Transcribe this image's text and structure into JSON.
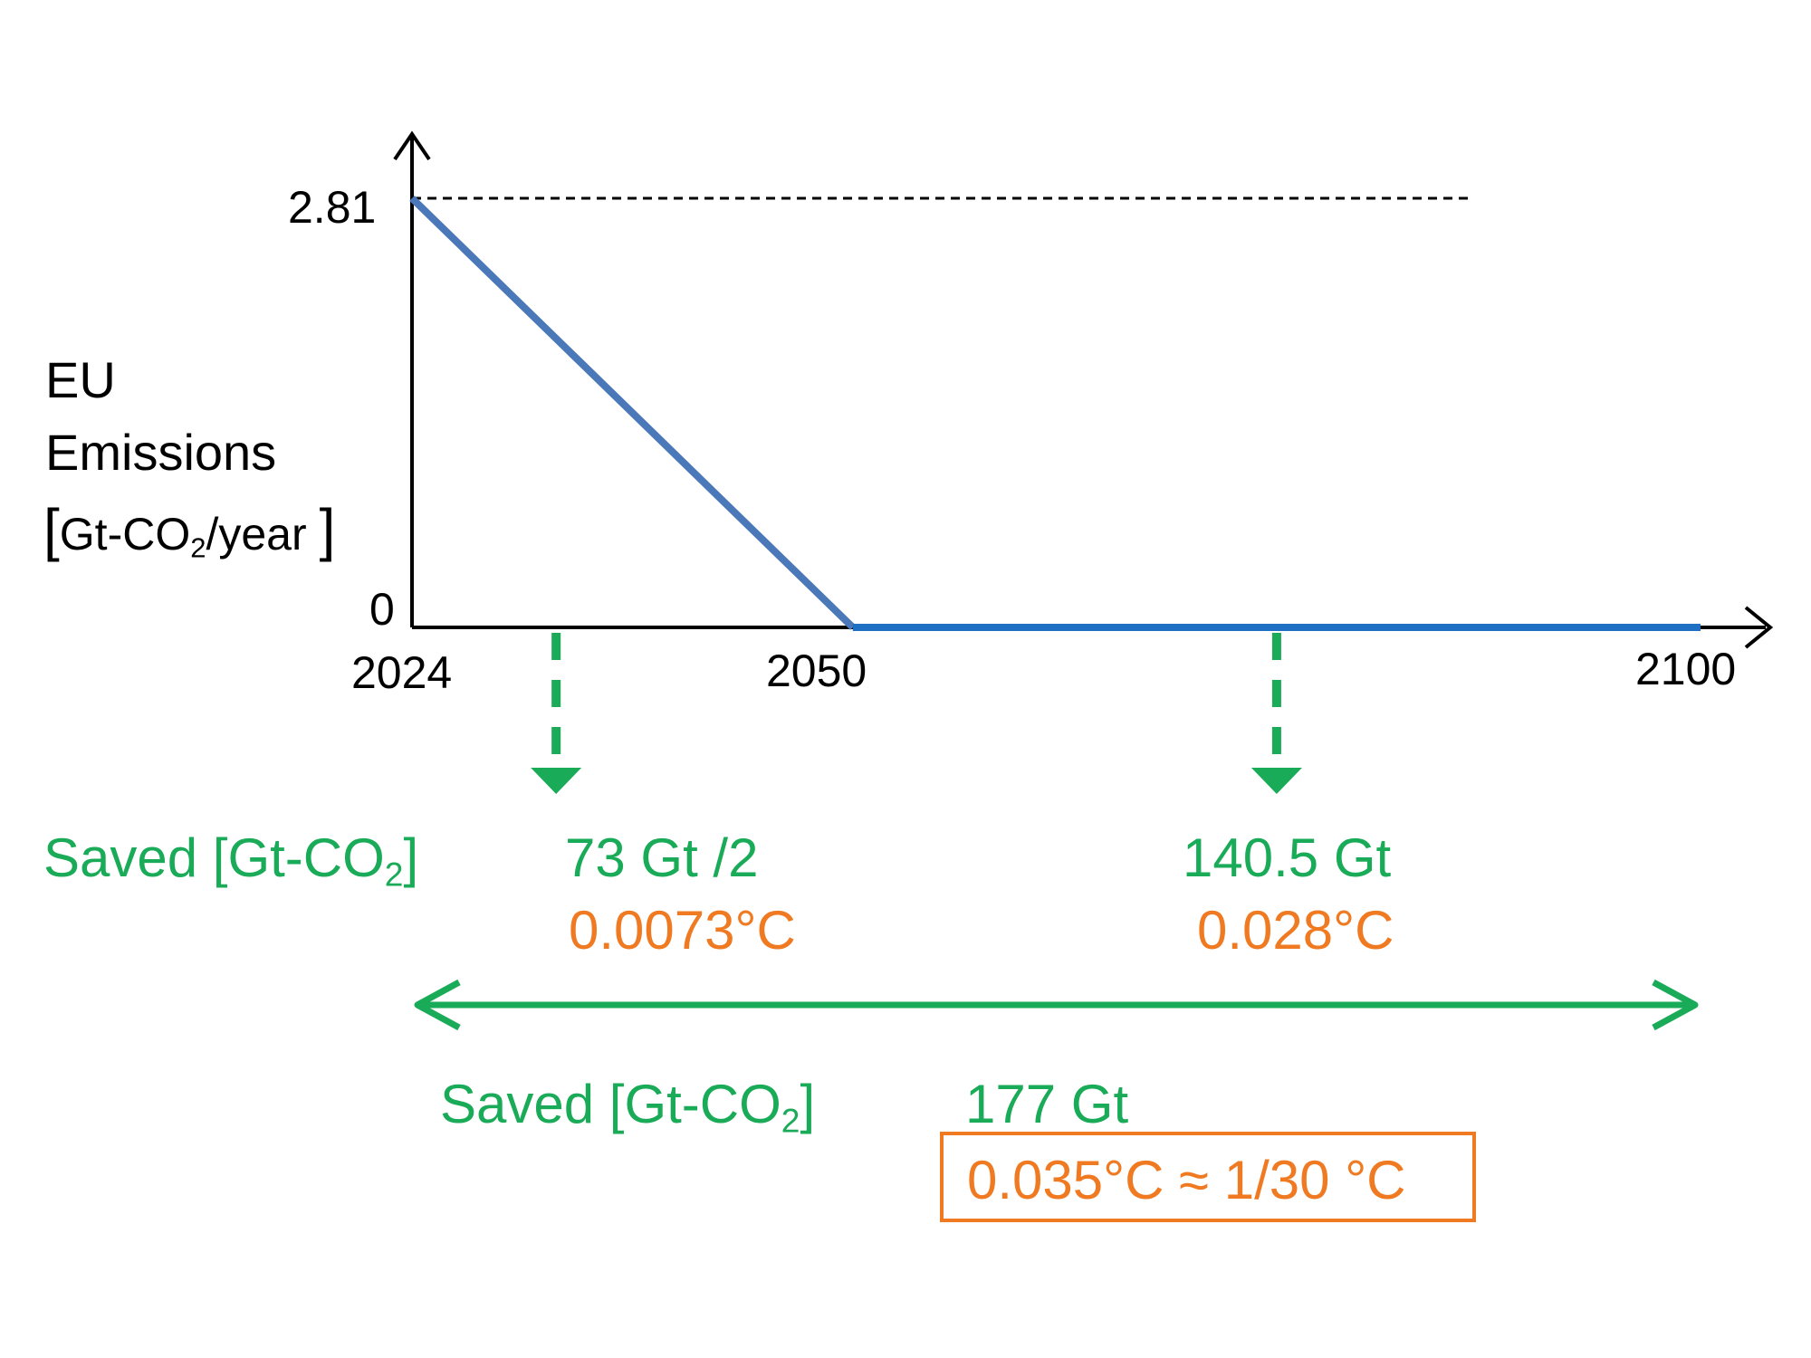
{
  "colors": {
    "axis": "#000000",
    "emissions_line": "#4A78B8",
    "zero_line": "#1F6FC4",
    "saved": "#1AAB58",
    "temperature": "#F07A22"
  },
  "chart_data": {
    "type": "line",
    "title": "",
    "ylabel_lines": [
      "EU",
      "Emissions"
    ],
    "ylabel_unit": {
      "open": "[",
      "pre": "Gt-CO",
      "sub": "2",
      "post": "/year",
      "close": "]"
    },
    "x_ticks": [
      "2024",
      "2050",
      "2100"
    ],
    "y_ticks": [
      "0",
      "2.81"
    ],
    "xlim": [
      2024,
      2100
    ],
    "ylim": [
      0,
      2.81
    ],
    "reference_level": 2.81,
    "series": [
      {
        "x": [
          2024,
          2050,
          2100
        ],
        "y": [
          2.81,
          0,
          0
        ]
      }
    ],
    "annotations": {
      "saved_label": {
        "pre": "Saved [Gt-CO",
        "sub": "2",
        "post": "]"
      },
      "period_1": {
        "range": [
          2024,
          2050
        ],
        "arrow_at": 2032.5,
        "saved": "73 Gt /2",
        "temperature": "0.0073°C"
      },
      "period_2": {
        "range": [
          2050,
          2100
        ],
        "arrow_at": 2075,
        "saved": "140.5 Gt",
        "temperature": "0.028°C"
      },
      "total": {
        "range": [
          2024,
          2100
        ],
        "saved": "177 Gt",
        "temperature": "0.035°C ≈ 1/30 °C"
      }
    }
  }
}
